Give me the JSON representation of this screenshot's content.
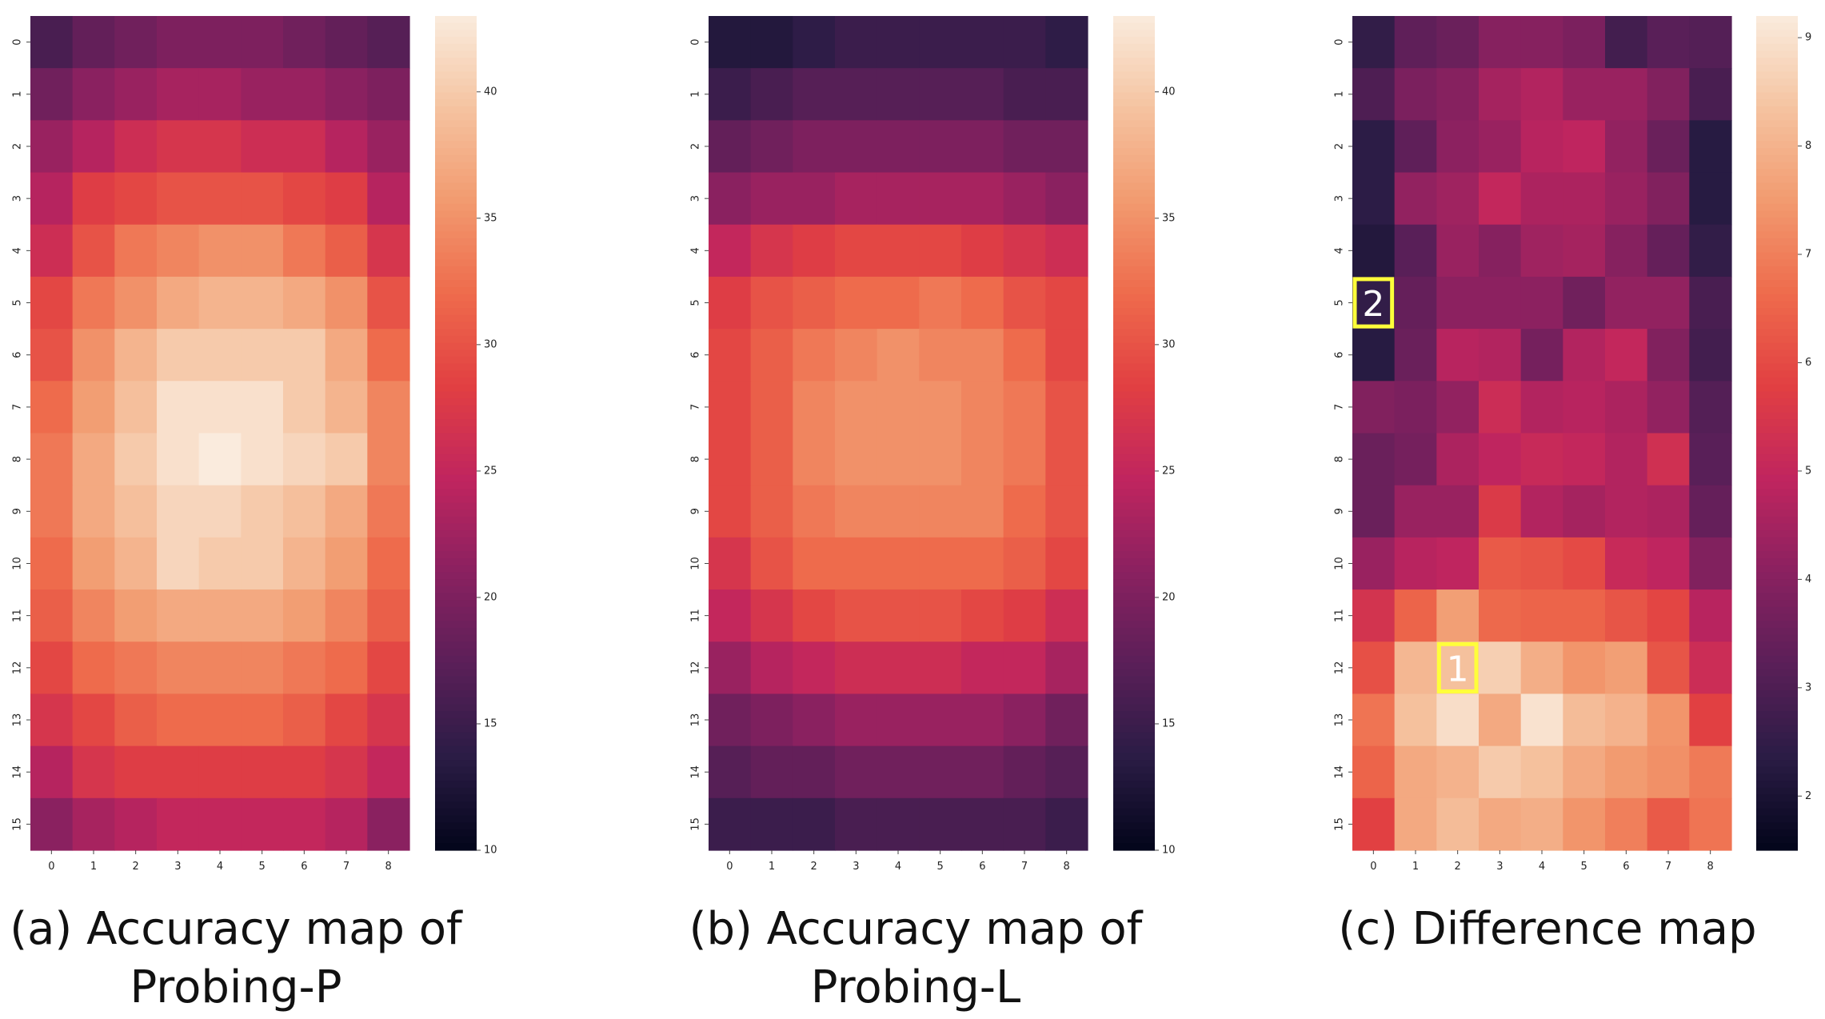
{
  "colors": {
    "colormap_stops": [
      "#03051a",
      "#2a1c45",
      "#5a1f58",
      "#8a2160",
      "#c0255f",
      "#e13f42",
      "#ee6b4c",
      "#f29a6f",
      "#f5c3a0",
      "#faebdd"
    ],
    "marker": "#ffff3a"
  },
  "captions": [
    {
      "line1": "(a) Accuracy map of",
      "line2": "Probing-P"
    },
    {
      "line1": "(b) Accuracy map of",
      "line2": "Probing-L"
    },
    {
      "line1": "(c) Difference map",
      "line2": ""
    }
  ],
  "chart_data": [
    {
      "type": "heatmap",
      "title": "",
      "x_ticks": [
        "0",
        "1",
        "2",
        "3",
        "4",
        "5",
        "6",
        "7",
        "8"
      ],
      "y_ticks": [
        "0",
        "1",
        "2",
        "3",
        "4",
        "5",
        "6",
        "7",
        "8",
        "9",
        "10",
        "11",
        "12",
        "13",
        "14",
        "15"
      ],
      "colorbar": {
        "min": 10,
        "max": 43,
        "ticks": [
          10,
          15,
          20,
          25,
          30,
          35,
          40
        ]
      },
      "values": [
        [
          16,
          18,
          19,
          20,
          20,
          20,
          19,
          18,
          17
        ],
        [
          19,
          21,
          22,
          23,
          23,
          22,
          22,
          21,
          20
        ],
        [
          22,
          24,
          26,
          27,
          27,
          26,
          26,
          24,
          22
        ],
        [
          24,
          28,
          29,
          30,
          30,
          30,
          29,
          28,
          24
        ],
        [
          26,
          30,
          33,
          34,
          35,
          35,
          33,
          31,
          27
        ],
        [
          29,
          33,
          35,
          37,
          38,
          38,
          37,
          35,
          30
        ],
        [
          30,
          35,
          38,
          40,
          40,
          40,
          40,
          37,
          32
        ],
        [
          32,
          36,
          39,
          42,
          42,
          42,
          40,
          38,
          34
        ],
        [
          33,
          37,
          40,
          42,
          43,
          42,
          41,
          40,
          34
        ],
        [
          33,
          37,
          39,
          41,
          41,
          40,
          39,
          37,
          33
        ],
        [
          32,
          36,
          38,
          41,
          40,
          40,
          38,
          36,
          32
        ],
        [
          31,
          34,
          36,
          37,
          37,
          37,
          36,
          34,
          31
        ],
        [
          29,
          32,
          33,
          34,
          34,
          34,
          33,
          32,
          29
        ],
        [
          27,
          29,
          31,
          32,
          32,
          32,
          31,
          29,
          27
        ],
        [
          24,
          27,
          28,
          28,
          28,
          28,
          28,
          27,
          25
        ],
        [
          21,
          23,
          24,
          25,
          25,
          25,
          25,
          24,
          21
        ]
      ]
    },
    {
      "type": "heatmap",
      "title": "",
      "x_ticks": [
        "0",
        "1",
        "2",
        "3",
        "4",
        "5",
        "6",
        "7",
        "8"
      ],
      "y_ticks": [
        "0",
        "1",
        "2",
        "3",
        "4",
        "5",
        "6",
        "7",
        "8",
        "9",
        "10",
        "11",
        "12",
        "13",
        "14",
        "15"
      ],
      "colorbar": {
        "min": 10,
        "max": 43,
        "ticks": [
          10,
          15,
          20,
          25,
          30,
          35,
          40
        ]
      },
      "values": [
        [
          13,
          13,
          14,
          15,
          15,
          15,
          15,
          15,
          14
        ],
        [
          15,
          16,
          17,
          17,
          17,
          17,
          17,
          16,
          16
        ],
        [
          18,
          19,
          20,
          20,
          20,
          20,
          20,
          19,
          19
        ],
        [
          21,
          22,
          22,
          23,
          23,
          23,
          23,
          22,
          21
        ],
        [
          25,
          27,
          28,
          29,
          29,
          29,
          28,
          27,
          26
        ],
        [
          28,
          30,
          31,
          32,
          32,
          33,
          32,
          30,
          29
        ],
        [
          29,
          31,
          33,
          34,
          35,
          34,
          34,
          32,
          29
        ],
        [
          29,
          31,
          34,
          35,
          35,
          35,
          34,
          33,
          30
        ],
        [
          29,
          31,
          34,
          35,
          35,
          35,
          34,
          33,
          30
        ],
        [
          29,
          31,
          33,
          34,
          34,
          34,
          34,
          32,
          30
        ],
        [
          27,
          30,
          32,
          32,
          32,
          32,
          32,
          31,
          29
        ],
        [
          25,
          27,
          29,
          30,
          30,
          30,
          29,
          28,
          26
        ],
        [
          22,
          24,
          25,
          26,
          26,
          26,
          25,
          25,
          23
        ],
        [
          19,
          20,
          21,
          22,
          22,
          22,
          22,
          21,
          19
        ],
        [
          17,
          18,
          18,
          19,
          19,
          19,
          19,
          18,
          17
        ],
        [
          15,
          15,
          15,
          16,
          16,
          16,
          16,
          16,
          15
        ]
      ]
    },
    {
      "type": "heatmap",
      "title": "",
      "x_ticks": [
        "0",
        "1",
        "2",
        "3",
        "4",
        "5",
        "6",
        "7",
        "8"
      ],
      "y_ticks": [
        "0",
        "1",
        "2",
        "3",
        "4",
        "5",
        "6",
        "7",
        "8",
        "9",
        "10",
        "11",
        "12",
        "13",
        "14",
        "15"
      ],
      "colorbar": {
        "min": 1.5,
        "max": 9.2,
        "ticks": [
          2,
          3,
          4,
          5,
          6,
          7,
          8,
          9
        ]
      },
      "values": [
        [
          2.5,
          3.3,
          3.5,
          4.0,
          4.0,
          3.8,
          2.8,
          3.2,
          3.1
        ],
        [
          3.0,
          3.8,
          4.0,
          4.5,
          4.7,
          4.3,
          4.3,
          3.9,
          2.9
        ],
        [
          2.4,
          3.3,
          4.1,
          4.3,
          4.8,
          4.9,
          4.2,
          3.5,
          2.3
        ],
        [
          2.4,
          4.2,
          4.4,
          5.0,
          4.6,
          4.6,
          4.3,
          3.9,
          2.3
        ],
        [
          2.2,
          3.2,
          4.3,
          4.0,
          4.4,
          4.5,
          4.0,
          3.4,
          2.5
        ],
        [
          2.5,
          3.4,
          4.1,
          4.1,
          4.1,
          3.6,
          4.2,
          4.2,
          2.9
        ],
        [
          2.3,
          3.5,
          4.8,
          4.7,
          3.7,
          4.7,
          5.0,
          3.9,
          2.8
        ],
        [
          3.9,
          3.8,
          4.2,
          5.2,
          4.7,
          4.8,
          4.6,
          4.2,
          3.1
        ],
        [
          3.5,
          3.7,
          4.6,
          4.9,
          5.1,
          5.0,
          4.7,
          5.3,
          3.2
        ],
        [
          3.5,
          4.3,
          4.3,
          5.6,
          4.7,
          4.5,
          4.7,
          4.6,
          3.4
        ],
        [
          4.3,
          4.8,
          4.9,
          6.3,
          6.2,
          6.0,
          5.1,
          4.9,
          3.9
        ],
        [
          5.4,
          6.5,
          7.6,
          6.6,
          6.5,
          6.5,
          6.2,
          5.9,
          4.8
        ],
        [
          6.1,
          8.1,
          8.3,
          8.6,
          7.9,
          7.4,
          7.6,
          6.2,
          5.2
        ],
        [
          6.8,
          8.3,
          8.9,
          7.8,
          9.0,
          8.2,
          8.0,
          7.4,
          5.8
        ],
        [
          6.5,
          7.8,
          8.0,
          8.5,
          8.3,
          7.8,
          7.5,
          7.3,
          6.9
        ],
        [
          5.8,
          7.8,
          8.2,
          7.8,
          7.9,
          7.4,
          7.0,
          6.3,
          6.8
        ]
      ],
      "annotations": [
        {
          "label": "1",
          "row": 12,
          "col": 2
        },
        {
          "label": "2",
          "row": 5,
          "col": 0
        }
      ]
    }
  ]
}
